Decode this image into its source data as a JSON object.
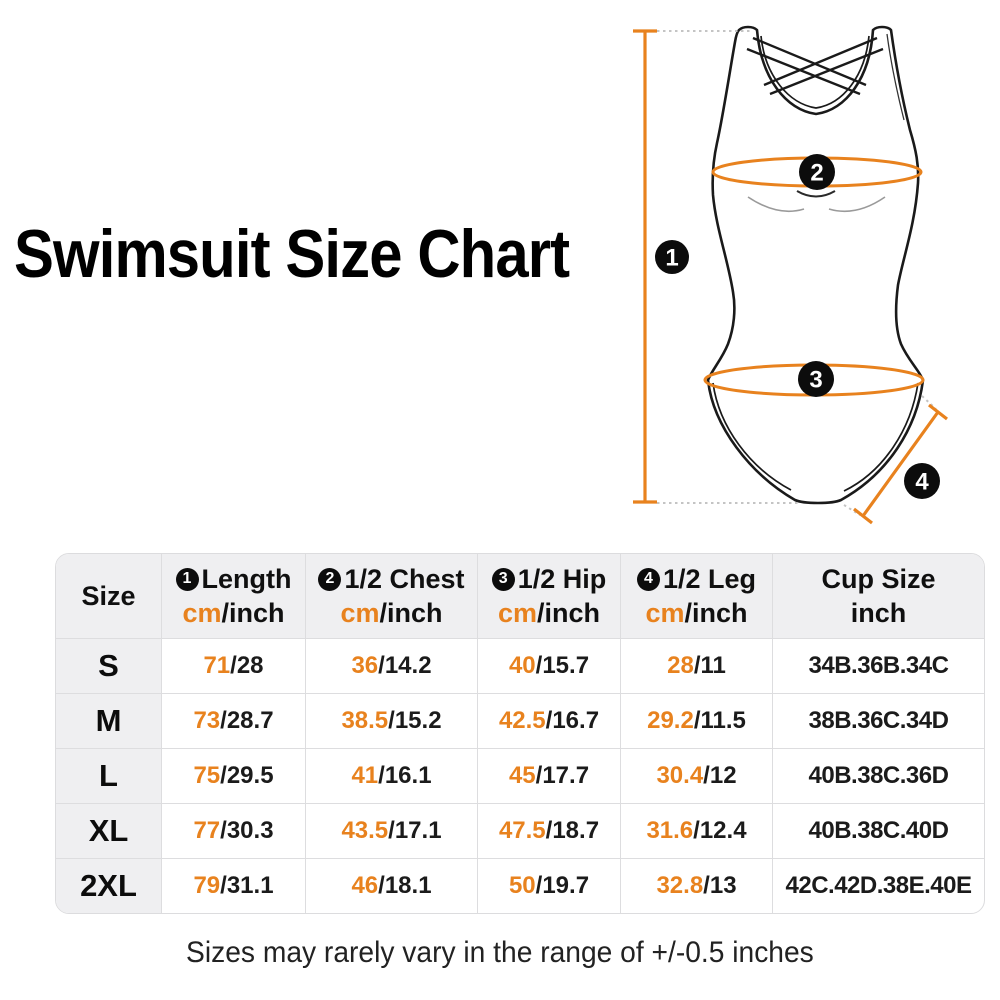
{
  "title": "Swimsuit Size Chart",
  "colors": {
    "accent_orange": "#e8821e",
    "header_bg": "#efeff1",
    "grid_line": "#dddddf",
    "text_black": "#111111"
  },
  "illustration": {
    "description": "one-piece swimsuit front view with measurement markers",
    "markers": [
      {
        "num": "1",
        "label": "Length"
      },
      {
        "num": "2",
        "label": "1/2 Chest"
      },
      {
        "num": "3",
        "label": "1/2 Hip"
      },
      {
        "num": "4",
        "label": "1/2 Leg"
      }
    ]
  },
  "chart_data": {
    "type": "table",
    "separator": "/",
    "columns": [
      {
        "id": "size",
        "label": "Size"
      },
      {
        "id": "length",
        "num": "1",
        "label": "Length",
        "unit_cm": "cm",
        "unit_rest": "/inch"
      },
      {
        "id": "chest",
        "num": "2",
        "label": "1/2 Chest",
        "unit_cm": "cm",
        "unit_rest": "/inch"
      },
      {
        "id": "hip",
        "num": "3",
        "label": "1/2 Hip",
        "unit_cm": "cm",
        "unit_rest": "/inch"
      },
      {
        "id": "leg",
        "num": "4",
        "label": "1/2 Leg",
        "unit_cm": "cm",
        "unit_rest": "/inch"
      },
      {
        "id": "cup",
        "label": "Cup Size",
        "unit": "inch"
      }
    ],
    "rows": [
      {
        "size": "S",
        "length": {
          "cm": "71",
          "inch": "28"
        },
        "chest": {
          "cm": "36",
          "inch": "14.2"
        },
        "hip": {
          "cm": "40",
          "inch": "15.7"
        },
        "leg": {
          "cm": "28",
          "inch": "11"
        },
        "cup": "34B.36B.34C"
      },
      {
        "size": "M",
        "length": {
          "cm": "73",
          "inch": "28.7"
        },
        "chest": {
          "cm": "38.5",
          "inch": "15.2"
        },
        "hip": {
          "cm": "42.5",
          "inch": "16.7"
        },
        "leg": {
          "cm": "29.2",
          "inch": "11.5"
        },
        "cup": "38B.36C.34D"
      },
      {
        "size": "L",
        "length": {
          "cm": "75",
          "inch": "29.5"
        },
        "chest": {
          "cm": "41",
          "inch": "16.1"
        },
        "hip": {
          "cm": "45",
          "inch": "17.7"
        },
        "leg": {
          "cm": "30.4",
          "inch": "12"
        },
        "cup": "40B.38C.36D"
      },
      {
        "size": "XL",
        "length": {
          "cm": "77",
          "inch": "30.3"
        },
        "chest": {
          "cm": "43.5",
          "inch": "17.1"
        },
        "hip": {
          "cm": "47.5",
          "inch": "18.7"
        },
        "leg": {
          "cm": "31.6",
          "inch": "12.4"
        },
        "cup": "40B.38C.40D"
      },
      {
        "size": "2XL",
        "length": {
          "cm": "79",
          "inch": "31.1"
        },
        "chest": {
          "cm": "46",
          "inch": "18.1"
        },
        "hip": {
          "cm": "50",
          "inch": "19.7"
        },
        "leg": {
          "cm": "32.8",
          "inch": "13"
        },
        "cup": "42C.42D.38E.40E"
      }
    ]
  },
  "footer": {
    "note": "Sizes may rarely vary in the range of +/-0.5 inches"
  }
}
